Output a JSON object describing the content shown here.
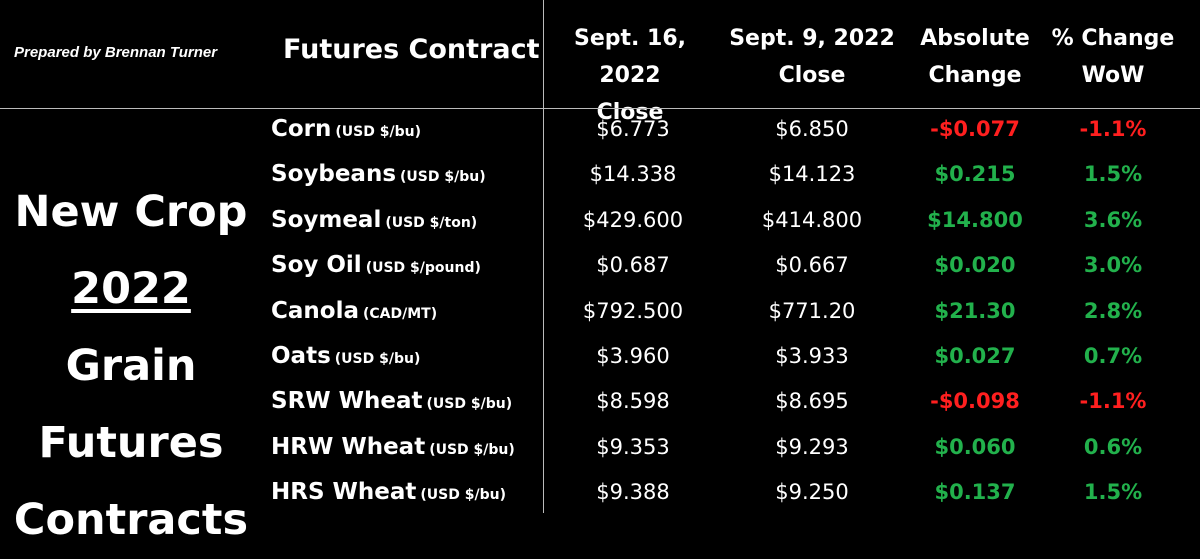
{
  "credit": "Prepared by Brennan Turner",
  "headers": {
    "contract": "Futures Contract",
    "sept16": [
      "Sept. 16, 2022",
      "Close"
    ],
    "sept9": [
      "Sept. 9, 2022",
      "Close"
    ],
    "abs_change": [
      "Absolute",
      "Change"
    ],
    "pct_change": [
      "% Change",
      "WoW"
    ]
  },
  "title": {
    "line1": "New Crop",
    "line2_year": "2022",
    "line2_rest": " Grain",
    "line3": "Futures",
    "line4": "Contracts"
  },
  "rows": [
    {
      "name": "Corn",
      "unit": "(USD $/bu)",
      "sep16": "$6.773",
      "sep9": "$6.850",
      "abs": "-$0.077",
      "pct": "-1.1%",
      "dir": "neg"
    },
    {
      "name": "Soybeans",
      "unit": "(USD $/bu)",
      "sep16": "$14.338",
      "sep9": "$14.123",
      "abs": "$0.215",
      "pct": "1.5%",
      "dir": "pos"
    },
    {
      "name": "Soymeal",
      "unit": "(USD $/ton)",
      "sep16": "$429.600",
      "sep9": "$414.800",
      "abs": "$14.800",
      "pct": "3.6%",
      "dir": "pos"
    },
    {
      "name": "Soy Oil",
      "unit": "(USD $/pound)",
      "sep16": "$0.687",
      "sep9": "$0.667",
      "abs": "$0.020",
      "pct": "3.0%",
      "dir": "pos"
    },
    {
      "name": "Canola",
      "unit": "(CAD/MT)",
      "sep16": "$792.500",
      "sep9": "$771.20",
      "abs": "$21.30",
      "pct": "2.8%",
      "dir": "pos"
    },
    {
      "name": "Oats",
      "unit": "(USD $/bu)",
      "sep16": "$3.960",
      "sep9": "$3.933",
      "abs": "$0.027",
      "pct": "0.7%",
      "dir": "pos"
    },
    {
      "name": "SRW Wheat",
      "unit": "(USD $/bu)",
      "sep16": "$8.598",
      "sep9": "$8.695",
      "abs": "-$0.098",
      "pct": "-1.1%",
      "dir": "neg"
    },
    {
      "name": "HRW Wheat",
      "unit": "(USD $/bu)",
      "sep16": "$9.353",
      "sep9": "$9.293",
      "abs": "$0.060",
      "pct": "0.6%",
      "dir": "pos"
    },
    {
      "name": "HRS Wheat",
      "unit": "(USD $/bu)",
      "sep16": "$9.388",
      "sep9": "$9.250",
      "abs": "$0.137",
      "pct": "1.5%",
      "dir": "pos"
    }
  ],
  "colors": {
    "negative": "#ff1f1f",
    "positive": "#22b14c",
    "background": "#000000",
    "text": "#ffffff"
  }
}
